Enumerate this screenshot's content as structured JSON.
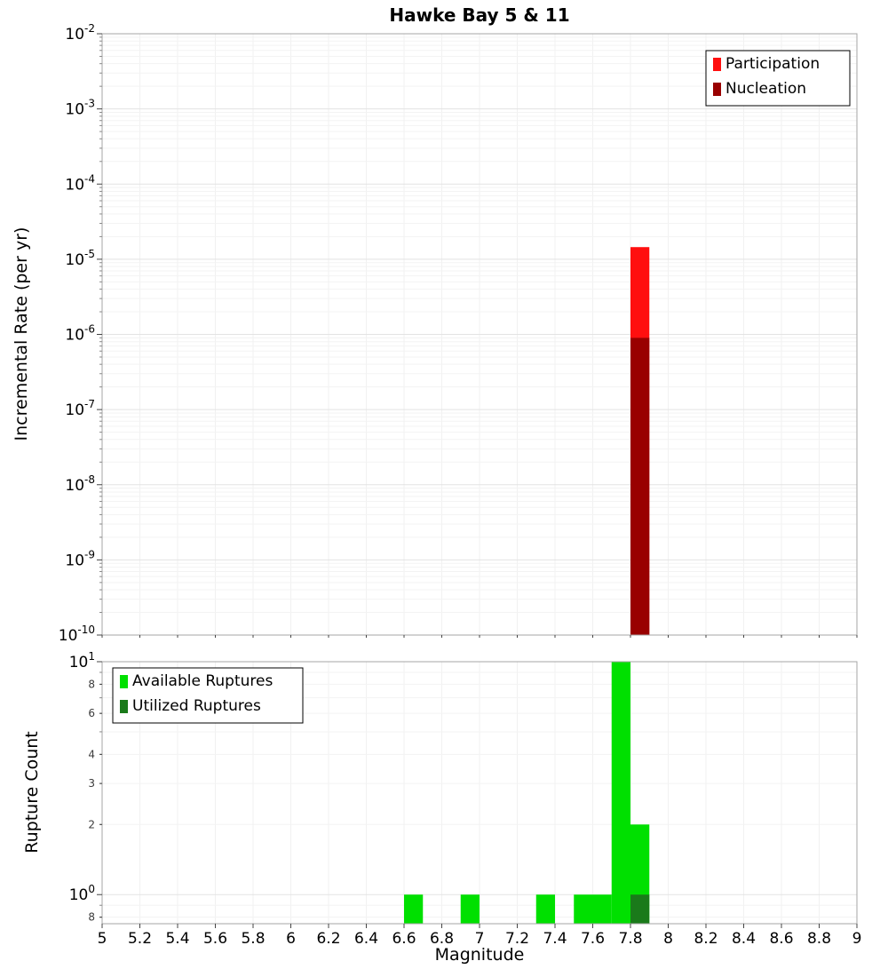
{
  "chart_data": [
    {
      "type": "bar",
      "title": "Hawke Bay 5 & 11",
      "ylabel": "Incremental Rate (per yr)",
      "yscale": "log",
      "ylim": [
        1e-10,
        0.01
      ],
      "xlim": [
        5,
        9
      ],
      "bar_width": 0.1,
      "grid": true,
      "legend_position": "top-right",
      "yticks": [
        {
          "value": 0.01,
          "base": "10",
          "exp": "-2",
          "major": true
        },
        {
          "value": 0.001,
          "base": "10",
          "exp": "-3",
          "major": true
        },
        {
          "value": 0.0001,
          "base": "10",
          "exp": "-4",
          "major": true
        },
        {
          "value": 1e-05,
          "base": "10",
          "exp": "-5",
          "major": true
        },
        {
          "value": 1e-06,
          "base": "10",
          "exp": "-6",
          "major": true
        },
        {
          "value": 1e-07,
          "base": "10",
          "exp": "-7",
          "major": true
        },
        {
          "value": 1e-08,
          "base": "10",
          "exp": "-8",
          "major": true
        },
        {
          "value": 1e-09,
          "base": "10",
          "exp": "-9",
          "major": true
        },
        {
          "value": 1e-10,
          "base": "10",
          "exp": "-10",
          "major": true
        }
      ],
      "series": [
        {
          "name": "Participation",
          "color": "#ff0f0f",
          "x": [
            7.85
          ],
          "values": [
            1.45e-05
          ]
        },
        {
          "name": "Nucleation",
          "color": "#990000",
          "x": [
            7.85
          ],
          "values": [
            9e-07
          ]
        }
      ]
    },
    {
      "type": "bar",
      "ylabel": "Rupture Count",
      "xlabel": "Magnitude",
      "yscale": "log",
      "ylim": [
        0.75,
        10
      ],
      "xlim": [
        5,
        9
      ],
      "bar_width": 0.1,
      "grid": true,
      "legend_position": "top-left",
      "yticks": [
        {
          "value": 10,
          "base": "10",
          "exp": "1",
          "major": true
        },
        {
          "value": 8,
          "label": "8"
        },
        {
          "value": 6,
          "label": "6"
        },
        {
          "value": 4,
          "label": "4"
        },
        {
          "value": 3,
          "label": "3"
        },
        {
          "value": 2,
          "label": "2"
        },
        {
          "value": 1,
          "base": "10",
          "exp": "0",
          "major": true
        },
        {
          "value": 0.8,
          "label": "8"
        }
      ],
      "xticks": [
        {
          "value": 5,
          "label": "5"
        },
        {
          "value": 5.2,
          "label": "5.2"
        },
        {
          "value": 5.4,
          "label": "5.4"
        },
        {
          "value": 5.6,
          "label": "5.6"
        },
        {
          "value": 5.8,
          "label": "5.8"
        },
        {
          "value": 6,
          "label": "6"
        },
        {
          "value": 6.2,
          "label": "6.2"
        },
        {
          "value": 6.4,
          "label": "6.4"
        },
        {
          "value": 6.6,
          "label": "6.6"
        },
        {
          "value": 6.8,
          "label": "6.8"
        },
        {
          "value": 7,
          "label": "7"
        },
        {
          "value": 7.2,
          "label": "7.2"
        },
        {
          "value": 7.4,
          "label": "7.4"
        },
        {
          "value": 7.6,
          "label": "7.6"
        },
        {
          "value": 7.8,
          "label": "7.8"
        },
        {
          "value": 8,
          "label": "8"
        },
        {
          "value": 8.2,
          "label": "8.2"
        },
        {
          "value": 8.4,
          "label": "8.4"
        },
        {
          "value": 8.6,
          "label": "8.6"
        },
        {
          "value": 8.8,
          "label": "8.8"
        },
        {
          "value": 9,
          "label": "9"
        }
      ],
      "series": [
        {
          "name": "Available Ruptures",
          "color": "#00e000",
          "x": [
            6.65,
            6.95,
            7.35,
            7.55,
            7.65,
            7.75,
            7.85
          ],
          "values": [
            1,
            1,
            1,
            1,
            1,
            10,
            2
          ]
        },
        {
          "name": "Utilized Ruptures",
          "color": "#1a7a1a",
          "x": [
            7.85
          ],
          "values": [
            1
          ]
        }
      ]
    }
  ]
}
